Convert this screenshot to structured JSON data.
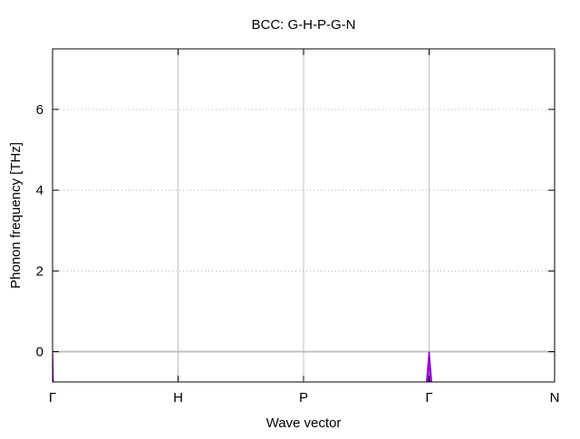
{
  "chart_data": {
    "type": "line",
    "title": "BCC: G-H-P-G-N",
    "xlabel": "Wave vector",
    "ylabel": "Phonon frequency [THz]",
    "xlim": [
      0,
      3.5
    ],
    "ylim": [
      -0.75,
      7.5
    ],
    "x_ticks": [
      {
        "label": "Γ",
        "value": 0
      },
      {
        "label": "H",
        "value": 1
      },
      {
        "label": "P",
        "value": 2
      },
      {
        "label": "Γ",
        "value": 3
      },
      {
        "label": "N",
        "value": 4
      }
    ],
    "y_ticks": [
      0,
      2,
      4,
      6
    ],
    "grid": {
      "horizontal": "dotted",
      "vertical": "solid",
      "vertical_at": "high-symmetry points"
    },
    "zero_line": true,
    "colors": {
      "band": "#9400d3",
      "grid_vertical": "#c0c0c0",
      "grid_horizontal": "#b0b0b0",
      "zero_line": "#c0c0c0",
      "axis": "#000000"
    },
    "series": [
      {
        "x": [
          0.0,
          0.005,
          0.01
        ],
        "y": [
          -0.05,
          -0.75,
          -0.75
        ]
      },
      {
        "x": [
          2.98,
          3.0,
          3.02
        ],
        "y": [
          -0.75,
          0.0,
          -0.75
        ]
      },
      {
        "x": [
          2.99,
          3.0,
          3.01
        ],
        "y": [
          -0.75,
          0.0,
          -0.75
        ]
      }
    ]
  }
}
